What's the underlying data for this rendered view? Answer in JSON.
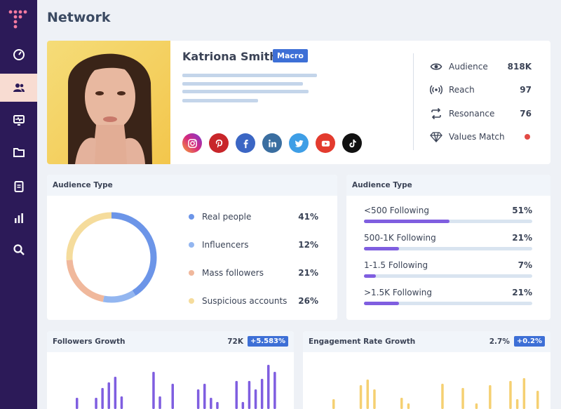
{
  "page": {
    "title": "Network"
  },
  "colors": {
    "sidebar": "#2c1a58",
    "accent": "#3d6fd6",
    "purple_bar": "#7f5ee0",
    "yellow_bar": "#f5d072"
  },
  "sidebar": {
    "items": [
      {
        "icon": "gauge-icon",
        "active": false
      },
      {
        "icon": "users-icon",
        "active": true
      },
      {
        "icon": "monitor-icon",
        "active": false
      },
      {
        "icon": "folder-icon",
        "active": false
      },
      {
        "icon": "document-icon",
        "active": false
      },
      {
        "icon": "bar-chart-icon",
        "active": false
      },
      {
        "icon": "search-icon",
        "active": false
      }
    ]
  },
  "profile": {
    "name": "Katriona Smith",
    "badge": "Macro",
    "socials": [
      "instagram-icon",
      "pinterest-icon",
      "facebook-icon",
      "linkedin-icon",
      "twitter-icon",
      "youtube-icon",
      "tiktok-icon"
    ],
    "stats": [
      {
        "icon": "eye-icon",
        "label": "Audience",
        "value": "818K"
      },
      {
        "icon": "broadcast-icon",
        "label": "Reach",
        "value": "97"
      },
      {
        "icon": "repeat-icon",
        "label": "Resonance",
        "value": "76"
      },
      {
        "icon": "diamond-icon",
        "label": "Values Match",
        "value": ""
      }
    ]
  },
  "audience_type": {
    "title": "Audience Type",
    "segments": [
      {
        "label": "Real people",
        "pct": "41%",
        "value": 41,
        "color": "#6c95e8"
      },
      {
        "label": "Influencers",
        "pct": "12%",
        "value": 12,
        "color": "#93b6f0"
      },
      {
        "label": "Mass followers",
        "pct": "21%",
        "value": 21,
        "color": "#f0b89c"
      },
      {
        "label": "Suspicious accounts",
        "pct": "26%",
        "value": 26,
        "color": "#f5dc9c"
      }
    ]
  },
  "following": {
    "title": "Audience Type",
    "rows": [
      {
        "label": "<500 Following",
        "pct": "51%",
        "value": 51
      },
      {
        "label": "500-1K Following",
        "pct": "21%",
        "value": 21
      },
      {
        "label": "1-1.5 Following",
        "pct": "7%",
        "value": 7
      },
      {
        "label": ">1.5K Following",
        "pct": "21%",
        "value": 21
      }
    ]
  },
  "followers_growth": {
    "title": "Followers Growth",
    "value": "72K",
    "change": "+5.583%"
  },
  "engagement_growth": {
    "title": "Engagement Rate Growth",
    "value": "2.7%",
    "change": "+0.2%"
  },
  "chart_data": [
    {
      "type": "bar",
      "title": "Followers Growth",
      "values": [
        16,
        0,
        0,
        16,
        30,
        38,
        46,
        18,
        0,
        0,
        0,
        0,
        53,
        18,
        0,
        36,
        0,
        0,
        0,
        28,
        36,
        16,
        10,
        0,
        0,
        40,
        10,
        40,
        28,
        43,
        63,
        53
      ]
    },
    {
      "type": "bar",
      "title": "Engagement Rate Growth",
      "values": [
        14,
        0,
        0,
        0,
        34,
        42,
        28,
        0,
        0,
        0,
        16,
        8,
        0,
        0,
        0,
        0,
        36,
        0,
        0,
        30,
        0,
        8,
        0,
        34,
        0,
        0,
        40,
        14,
        44,
        0,
        26
      ]
    }
  ]
}
